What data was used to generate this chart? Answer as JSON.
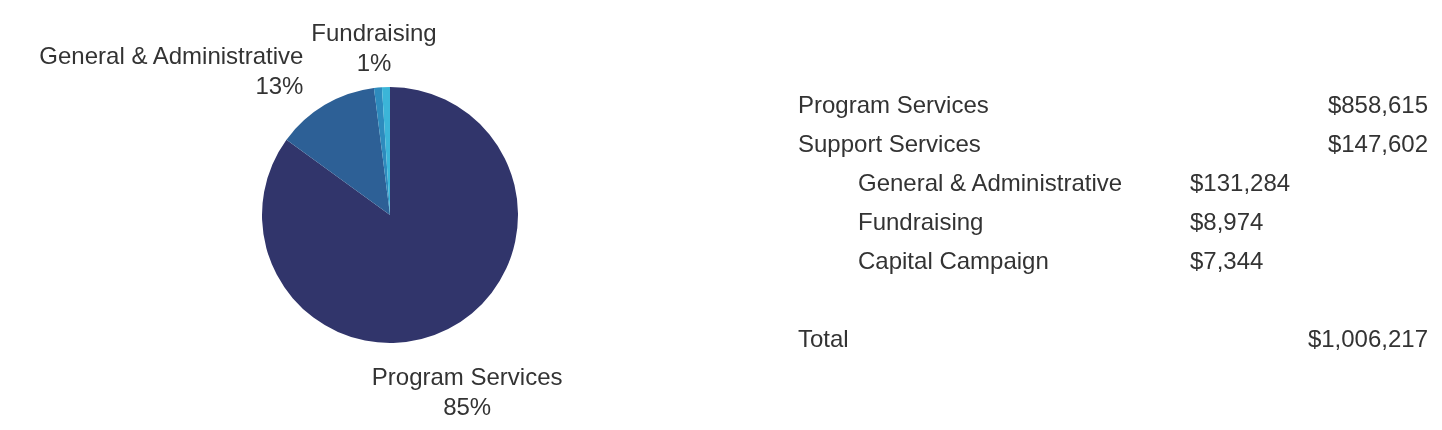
{
  "chart_data": [
    {
      "type": "pie",
      "categories": [
        "Program Services",
        "General & Administrative",
        "Fundraising",
        null
      ],
      "values": [
        85,
        13,
        1,
        1
      ],
      "colors": [
        "#31356b",
        "#2d6096",
        "#2e8bbd",
        "#3bb5d8"
      ],
      "value_labels": [
        "85%",
        "13%",
        "1%",
        null
      ]
    },
    {
      "type": "other",
      "annotations": [
        "Program Services",
        "$858,615",
        "Support Services",
        "$147,602",
        "General & Administrative",
        "$131,284",
        "Fundraising",
        "$8,974",
        "Capital Campaign",
        "$7,344",
        "Total",
        "$1,006,217"
      ]
    }
  ]
}
